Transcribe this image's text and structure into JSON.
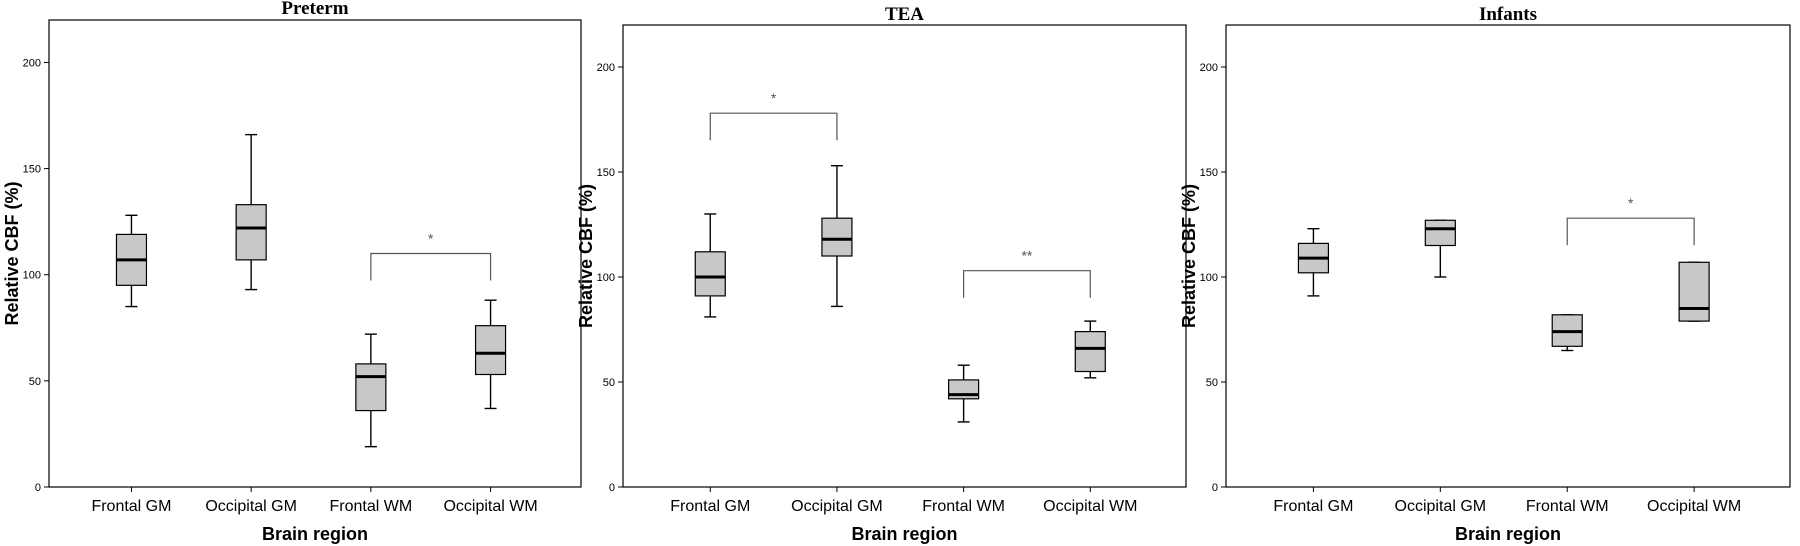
{
  "chart_data": [
    {
      "type": "box",
      "title": "Preterm",
      "xlabel": "Brain region",
      "ylabel": "Relative CBF (%)",
      "ylim": [
        0,
        220
      ],
      "yticks": [
        0,
        50,
        100,
        150,
        200
      ],
      "categories": [
        "Frontal GM",
        "Occipital GM",
        "Frontal WM",
        "Occipital WM"
      ],
      "boxes": [
        {
          "min": 85,
          "q1": 95,
          "median": 107,
          "q3": 119,
          "max": 128
        },
        {
          "min": 93,
          "q1": 107,
          "median": 122,
          "q3": 133,
          "max": 166
        },
        {
          "min": 19,
          "q1": 36,
          "median": 52,
          "q3": 58,
          "max": 72
        },
        {
          "min": 37,
          "q1": 53,
          "median": 63,
          "q3": 76,
          "max": 88
        }
      ],
      "significance": [
        {
          "from": 2,
          "to": 3,
          "label": "*",
          "level": 110
        }
      ]
    },
    {
      "type": "box",
      "title": "TEA",
      "xlabel": "Brain region",
      "ylabel": "Relative CBF (%)",
      "ylim": [
        0,
        220
      ],
      "yticks": [
        0,
        50,
        100,
        150,
        200
      ],
      "categories": [
        "Frontal GM",
        "Occipital GM",
        "Frontal WM",
        "Occipital WM"
      ],
      "boxes": [
        {
          "min": 81,
          "q1": 91,
          "median": 100,
          "q3": 112,
          "max": 130
        },
        {
          "min": 86,
          "q1": 110,
          "median": 118,
          "q3": 128,
          "max": 153
        },
        {
          "min": 31,
          "q1": 42,
          "median": 44,
          "q3": 51,
          "max": 58
        },
        {
          "min": 52,
          "q1": 55,
          "median": 66,
          "q3": 74,
          "max": 79
        }
      ],
      "significance": [
        {
          "from": 0,
          "to": 1,
          "label": "*",
          "level": 178
        },
        {
          "from": 2,
          "to": 3,
          "label": "**",
          "level": 103
        }
      ]
    },
    {
      "type": "box",
      "title": "Infants",
      "xlabel": "Brain region",
      "ylabel": "Relative CBF (%)",
      "ylim": [
        0,
        220
      ],
      "yticks": [
        0,
        50,
        100,
        150,
        200
      ],
      "categories": [
        "Frontal GM",
        "Occipital GM",
        "Frontal WM",
        "Occipital WM"
      ],
      "boxes": [
        {
          "min": 91,
          "q1": 102,
          "median": 109,
          "q3": 116,
          "max": 123
        },
        {
          "min": 100,
          "q1": 115,
          "median": 123,
          "q3": 127,
          "max": 127
        },
        {
          "min": 65,
          "q1": 67,
          "median": 74,
          "q3": 82,
          "max": 82
        },
        {
          "min": 79,
          "q1": 79,
          "median": 85,
          "q3": 107,
          "max": 107
        }
      ],
      "significance": [
        {
          "from": 2,
          "to": 3,
          "label": "*",
          "level": 128
        }
      ]
    }
  ],
  "colors": {
    "box_fill": "#c8c8c8",
    "line": "#000000",
    "bracket": "#555555"
  }
}
